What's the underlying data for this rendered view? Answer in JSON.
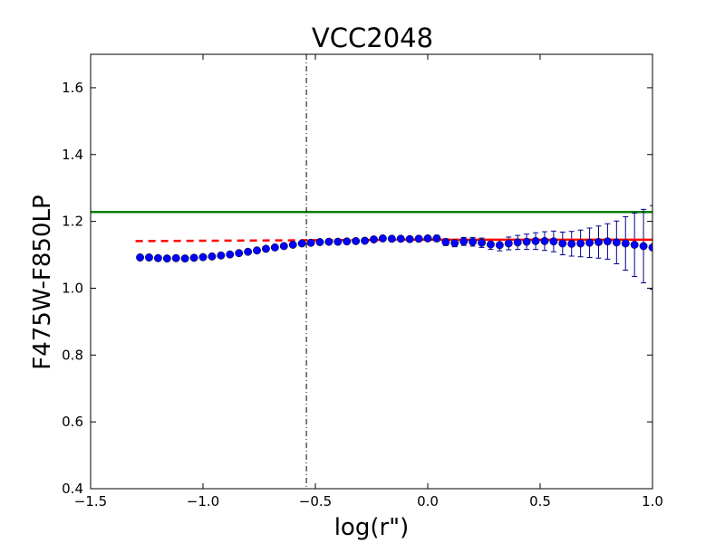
{
  "chart_data": {
    "type": "scatter",
    "title": "VCC2048",
    "xlabel": "log(r\")",
    "ylabel": "F475W-F850LP",
    "xlim": [
      -1.5,
      1.0
    ],
    "ylim": [
      0.4,
      1.7
    ],
    "xticks": [
      -1.5,
      -1.0,
      -0.5,
      0.0,
      0.5,
      1.0
    ],
    "xtick_labels": [
      "−1.5",
      "−1.0",
      "−0.5",
      "0.0",
      "0.5",
      "1.0"
    ],
    "yticks": [
      0.4,
      0.6,
      0.8,
      1.0,
      1.2,
      1.4,
      1.6
    ],
    "ytick_labels": [
      "0.4",
      "0.6",
      "0.8",
      "1.0",
      "1.2",
      "1.4",
      "1.6"
    ],
    "grid": false,
    "colors": {
      "points": "#0000ff",
      "errorbars": "#00008b",
      "fit_line": "#ff0000",
      "reference_line": "#008000",
      "vline": "#000000"
    },
    "reference_hline": {
      "y": 1.228,
      "label": ""
    },
    "vertical_line": {
      "x": -0.54,
      "style": "dashdot"
    },
    "fit_dashed": {
      "x": [
        -1.3,
        -0.1
      ],
      "y": [
        1.141,
        1.145
      ]
    },
    "fit_solid": {
      "x": [
        -0.1,
        1.0
      ],
      "y": [
        1.145,
        1.145
      ]
    },
    "series": [
      {
        "name": "profile",
        "x": [
          -1.28,
          -1.24,
          -1.2,
          -1.16,
          -1.12,
          -1.08,
          -1.04,
          -1.0,
          -0.96,
          -0.92,
          -0.88,
          -0.84,
          -0.8,
          -0.76,
          -0.72,
          -0.68,
          -0.64,
          -0.6,
          -0.56,
          -0.52,
          -0.48,
          -0.44,
          -0.4,
          -0.36,
          -0.32,
          -0.28,
          -0.24,
          -0.2,
          -0.16,
          -0.12,
          -0.08,
          -0.04,
          0.0,
          0.04,
          0.08,
          0.12,
          0.16,
          0.2,
          0.24,
          0.28,
          0.32,
          0.36,
          0.4,
          0.44,
          0.48,
          0.52,
          0.56,
          0.6,
          0.64,
          0.68,
          0.72,
          0.76,
          0.8,
          0.84,
          0.88,
          0.92,
          0.96,
          1.0
        ],
        "y": [
          1.092,
          1.092,
          1.09,
          1.089,
          1.09,
          1.089,
          1.091,
          1.093,
          1.095,
          1.098,
          1.101,
          1.105,
          1.109,
          1.113,
          1.118,
          1.122,
          1.126,
          1.13,
          1.134,
          1.136,
          1.138,
          1.139,
          1.139,
          1.14,
          1.141,
          1.142,
          1.146,
          1.149,
          1.148,
          1.148,
          1.147,
          1.148,
          1.149,
          1.149,
          1.138,
          1.135,
          1.14,
          1.139,
          1.136,
          1.131,
          1.129,
          1.134,
          1.137,
          1.139,
          1.141,
          1.141,
          1.14,
          1.134,
          1.133,
          1.134,
          1.136,
          1.138,
          1.14,
          1.137,
          1.134,
          1.13,
          1.126,
          1.122
        ],
        "yerr": [
          0.003,
          0.003,
          0.003,
          0.003,
          0.003,
          0.003,
          0.003,
          0.003,
          0.003,
          0.003,
          0.003,
          0.003,
          0.003,
          0.003,
          0.003,
          0.003,
          0.003,
          0.003,
          0.003,
          0.003,
          0.003,
          0.004,
          0.004,
          0.004,
          0.004,
          0.005,
          0.005,
          0.006,
          0.006,
          0.007,
          0.007,
          0.008,
          0.008,
          0.009,
          0.01,
          0.011,
          0.012,
          0.013,
          0.014,
          0.015,
          0.017,
          0.019,
          0.021,
          0.023,
          0.025,
          0.028,
          0.031,
          0.034,
          0.037,
          0.04,
          0.044,
          0.048,
          0.053,
          0.064,
          0.08,
          0.095,
          0.11,
          0.125
        ]
      }
    ]
  }
}
